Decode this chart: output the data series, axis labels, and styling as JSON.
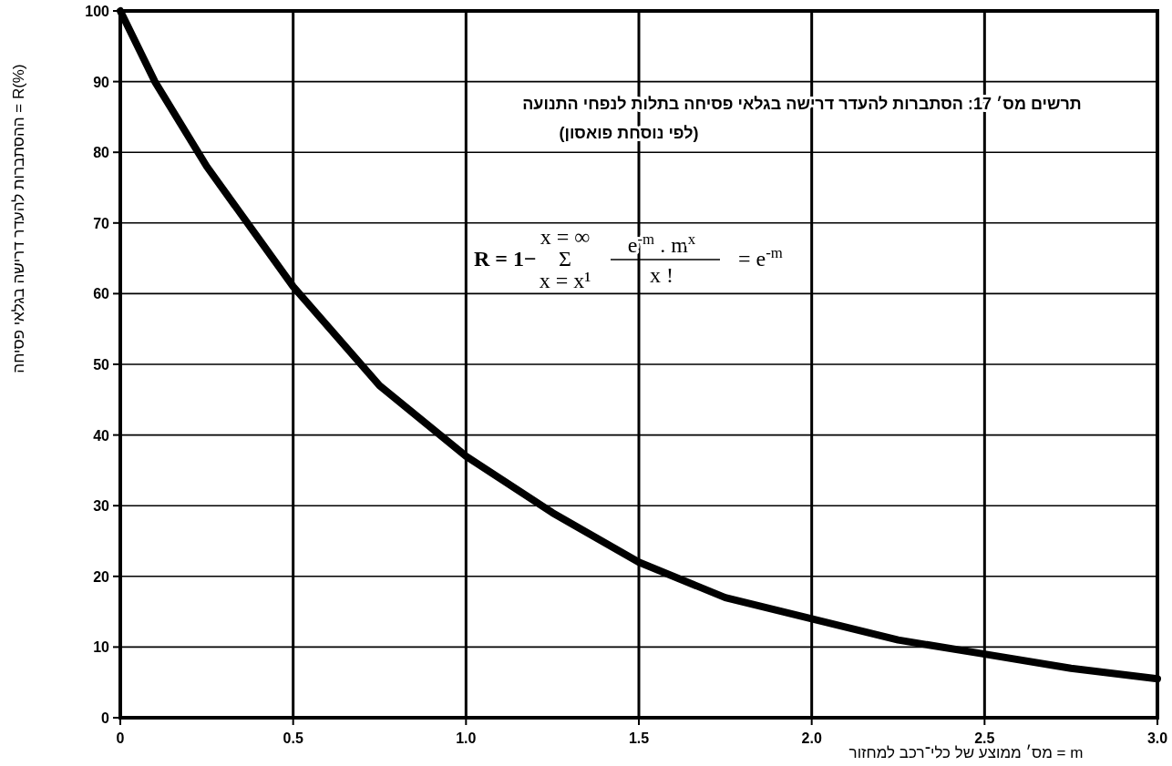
{
  "chart_data": {
    "type": "line",
    "title": "תרשים מס׳ 17: הסתברות להעדר דרישה בגלאי פסיחה בתלות לנפחי התנועה",
    "subtitle": "(לפי נוסחת פואסון)",
    "annotations": [
      "R = 1−",
      "x = ∞",
      "Σ",
      "x = x¹",
      "e$^{-m}$ . m$^{x}$",
      "x !",
      "=   e$^{-m}$"
    ],
    "xlabel": "m = מס׳ ממוצע של כלי־רכב למחזור",
    "ylabel": "R(%) = ההסתברות להעדר דרישה בגלאי פסיחה",
    "x": [
      0,
      0.1,
      0.25,
      0.5,
      0.75,
      1.0,
      1.25,
      1.5,
      1.75,
      2.0,
      2.25,
      2.5,
      2.75,
      3.0
    ],
    "series": [
      {
        "color": "#000000",
        "values": [
          100,
          90,
          78,
          61,
          47,
          37,
          29,
          22,
          17,
          14,
          11,
          9,
          7,
          5.5
        ]
      }
    ],
    "xlim": [
      0,
      3.0
    ],
    "ylim": [
      0,
      100
    ],
    "xticks": [
      {
        "value": 0,
        "label": "0"
      },
      0.5,
      {
        "value": 1,
        "label": "1.0"
      },
      1.5,
      {
        "value": 2,
        "label": "2.0"
      },
      2.5,
      {
        "value": 3,
        "label": "3.0"
      }
    ],
    "yticks": [
      0,
      10,
      20,
      30,
      40,
      50,
      60,
      70,
      80,
      90,
      100
    ],
    "grid": true,
    "line_style": "solid",
    "marker": "none"
  }
}
